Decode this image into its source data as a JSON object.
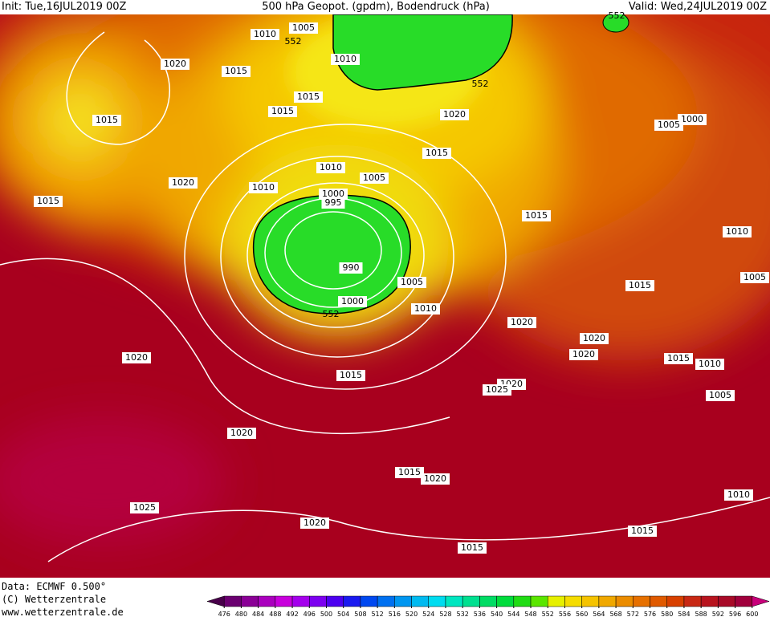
{
  "header": {
    "init": "Init: Tue,16JUL2019 00Z",
    "title": "500 hPa Geopot. (gpdm), Bodendruck (hPa)",
    "valid": "Valid: Wed,24JUL2019 00Z"
  },
  "footer": {
    "data": "Data: ECMWF   0.500°",
    "copyright": "(C) Wetterzentrale",
    "url": "www.wetterzentrale.de"
  },
  "isobar_labels": [
    "1005",
    "1010",
    "552",
    "1010",
    "1020",
    "1015",
    "1015",
    "1015",
    "1015",
    "552",
    "1020",
    "1000",
    "1005",
    "1015",
    "1010",
    "1005",
    "1020",
    "1010",
    "1000",
    "995",
    "1015",
    "1015",
    "1010",
    "990",
    "1005",
    "1015",
    "1005",
    "1000",
    "1010",
    "552",
    "1020",
    "1020",
    "1020",
    "1020",
    "1015",
    "1010",
    "1015",
    "1020",
    "1025",
    "1005",
    "1020",
    "1015",
    "1020",
    "1010",
    "1025",
    "1020",
    "1015",
    "1015",
    "552"
  ],
  "colorbar": {
    "levels": [
      476,
      480,
      484,
      488,
      492,
      496,
      500,
      504,
      508,
      512,
      516,
      520,
      524,
      528,
      532,
      536,
      540,
      544,
      548,
      552,
      556,
      560,
      564,
      568,
      572,
      576,
      580,
      584,
      588,
      592,
      596,
      600
    ],
    "colors": [
      "#48004a",
      "#6a0070",
      "#8a0096",
      "#aa00be",
      "#c800dc",
      "#a400ec",
      "#7c00f0",
      "#4c00f0",
      "#1a1af0",
      "#0048f0",
      "#0070f0",
      "#0096f0",
      "#00baf0",
      "#00dcf0",
      "#00e6c0",
      "#00e090",
      "#00dc64",
      "#00dc3c",
      "#20dc14",
      "#5ae600",
      "#e6f000",
      "#f5dc00",
      "#f5c300",
      "#f0a800",
      "#eb8c00",
      "#e67000",
      "#e05a00",
      "#d84000",
      "#c82814",
      "#b8141e",
      "#a80a28",
      "#a0003c",
      "#c8007a"
    ]
  }
}
